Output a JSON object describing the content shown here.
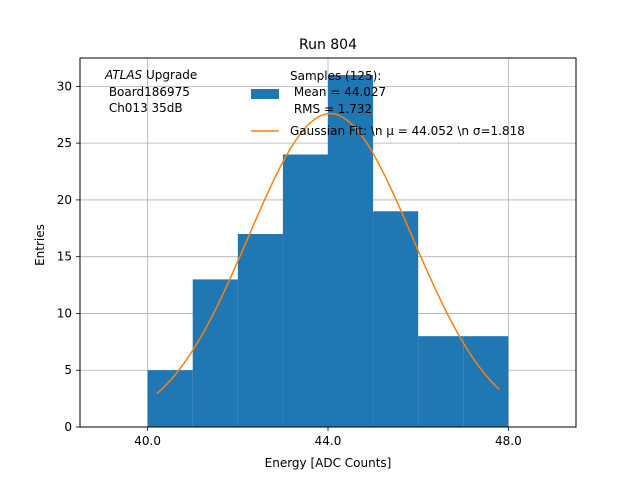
{
  "chart_data": {
    "type": "bar",
    "title": "Run 804",
    "xlabel": "Energy [ADC Counts]",
    "ylabel": "Entries",
    "xlim": [
      38.5,
      49.5
    ],
    "ylim": [
      0,
      32.5
    ],
    "grid": true,
    "x_ticks": [
      40.0,
      44.0,
      48.0
    ],
    "x_tick_labels": [
      "40.0",
      "44.0",
      "48.0"
    ],
    "y_ticks": [
      0,
      5,
      10,
      15,
      20,
      25,
      30
    ],
    "y_tick_labels": [
      "0",
      "5",
      "10",
      "15",
      "20",
      "25",
      "30"
    ],
    "bin_edges": [
      40,
      41,
      42,
      43,
      44,
      45,
      46,
      47,
      48
    ],
    "values": [
      5,
      13,
      17,
      24,
      31,
      19,
      8,
      8
    ],
    "bar_color": "#1f77b4",
    "fit": {
      "type": "gaussian",
      "mu": 44.052,
      "sigma": 1.818,
      "amplitude": 27.6,
      "x_range": [
        40.2,
        47.8
      ],
      "color": "#ff7f0e"
    },
    "annotation": {
      "atlas": "ATLAS",
      "upgrade": " Upgrade",
      "board": " Board186975",
      "channel": " Ch013 35dB"
    },
    "legend": {
      "placement": "top-right",
      "hist_lines": [
        "Samples (125):",
        " Mean = 44.027",
        " RMS = 1.732"
      ],
      "fit_label": "Gaussian Fit: \\n μ = 44.052 \\n σ=1.818"
    }
  }
}
